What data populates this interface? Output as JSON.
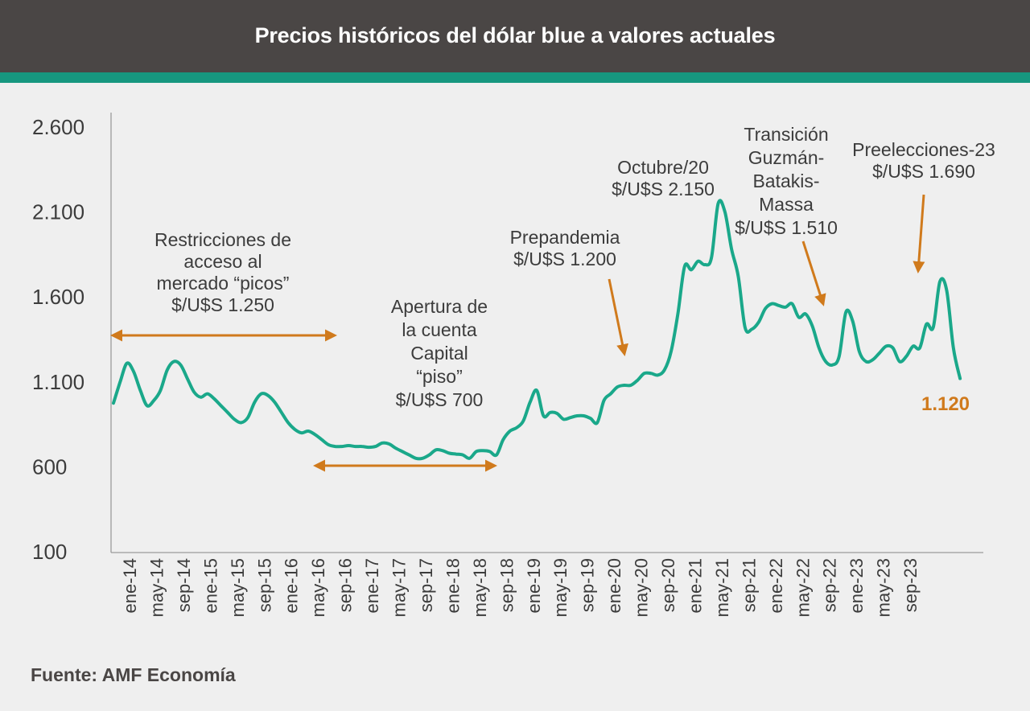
{
  "header": {
    "title": "Precios históricos del dólar blue a valores actuales"
  },
  "source": "Fuente: AMF Economía",
  "colors": {
    "line": "#1aa88a",
    "annotation": "#d07a1c",
    "text": "#3c3c3c",
    "header_bg": "#4a4645",
    "accent": "#16977f"
  },
  "chart_data": {
    "type": "line",
    "title": "Precios históricos del dólar blue a valores actuales",
    "xlabel": "",
    "ylabel": "",
    "ylim": [
      100,
      2600
    ],
    "yticks": [
      "2.600",
      "2.100",
      "1.600",
      "1.100",
      "600",
      "100"
    ],
    "ytick_values": [
      2600,
      2100,
      1600,
      1100,
      600,
      100
    ],
    "grid": false,
    "x_tick_labels": [
      "ene-14",
      "may-14",
      "sep-14",
      "ene-15",
      "may-15",
      "sep-15",
      "ene-16",
      "may-16",
      "sep-16",
      "ene-17",
      "may-17",
      "sep-17",
      "ene-18",
      "may-18",
      "sep-18",
      "ene-19",
      "may-19",
      "sep-19",
      "ene-20",
      "may-20",
      "sep-20",
      "ene-21",
      "may-21",
      "sep-21",
      "ene-22",
      "may-22",
      "sep-22",
      "ene-23",
      "may-23",
      "sep-23"
    ],
    "x_range_months": [
      0,
      124
    ],
    "series": [
      {
        "name": "",
        "points": [
          [
            0,
            975
          ],
          [
            1,
            1100
          ],
          [
            2,
            1210
          ],
          [
            3,
            1160
          ],
          [
            4,
            1050
          ],
          [
            5,
            960
          ],
          [
            6,
            990
          ],
          [
            7,
            1050
          ],
          [
            8,
            1170
          ],
          [
            9,
            1220
          ],
          [
            10,
            1200
          ],
          [
            11,
            1120
          ],
          [
            12,
            1040
          ],
          [
            13,
            1010
          ],
          [
            14,
            1030
          ],
          [
            15,
            1000
          ],
          [
            16,
            960
          ],
          [
            17,
            920
          ],
          [
            18,
            880
          ],
          [
            19,
            860
          ],
          [
            20,
            890
          ],
          [
            21,
            980
          ],
          [
            22,
            1030
          ],
          [
            23,
            1020
          ],
          [
            24,
            980
          ],
          [
            25,
            920
          ],
          [
            26,
            860
          ],
          [
            27,
            820
          ],
          [
            28,
            800
          ],
          [
            29,
            810
          ],
          [
            30,
            790
          ],
          [
            31,
            760
          ],
          [
            32,
            730
          ],
          [
            33,
            720
          ],
          [
            34,
            720
          ],
          [
            35,
            725
          ],
          [
            36,
            720
          ],
          [
            37,
            720
          ],
          [
            38,
            715
          ],
          [
            39,
            720
          ],
          [
            40,
            740
          ],
          [
            41,
            735
          ],
          [
            42,
            710
          ],
          [
            43,
            690
          ],
          [
            44,
            670
          ],
          [
            45,
            650
          ],
          [
            46,
            650
          ],
          [
            47,
            670
          ],
          [
            48,
            700
          ],
          [
            49,
            695
          ],
          [
            50,
            680
          ],
          [
            51,
            675
          ],
          [
            52,
            670
          ],
          [
            53,
            650
          ],
          [
            54,
            690
          ],
          [
            55,
            695
          ],
          [
            56,
            690
          ],
          [
            57,
            670
          ],
          [
            58,
            760
          ],
          [
            59,
            810
          ],
          [
            60,
            830
          ],
          [
            61,
            870
          ],
          [
            62,
            980
          ],
          [
            63,
            1050
          ],
          [
            64,
            900
          ],
          [
            65,
            920
          ],
          [
            66,
            915
          ],
          [
            67,
            880
          ],
          [
            68,
            890
          ],
          [
            69,
            900
          ],
          [
            70,
            900
          ],
          [
            71,
            885
          ],
          [
            72,
            860
          ],
          [
            73,
            990
          ],
          [
            74,
            1030
          ],
          [
            75,
            1070
          ],
          [
            76,
            1080
          ],
          [
            77,
            1080
          ],
          [
            78,
            1110
          ],
          [
            79,
            1150
          ],
          [
            80,
            1150
          ],
          [
            81,
            1140
          ],
          [
            82,
            1170
          ],
          [
            83,
            1280
          ],
          [
            84,
            1500
          ],
          [
            85,
            1780
          ],
          [
            86,
            1760
          ],
          [
            87,
            1810
          ],
          [
            88,
            1790
          ],
          [
            89,
            1830
          ],
          [
            90,
            2150
          ],
          [
            91,
            2100
          ],
          [
            92,
            1880
          ],
          [
            93,
            1720
          ],
          [
            94,
            1420
          ],
          [
            95,
            1410
          ],
          [
            96,
            1450
          ],
          [
            97,
            1530
          ],
          [
            98,
            1560
          ],
          [
            99,
            1550
          ],
          [
            100,
            1540
          ],
          [
            101,
            1560
          ],
          [
            102,
            1480
          ],
          [
            103,
            1500
          ],
          [
            104,
            1430
          ],
          [
            105,
            1300
          ],
          [
            106,
            1220
          ],
          [
            107,
            1200
          ],
          [
            108,
            1250
          ],
          [
            109,
            1510
          ],
          [
            110,
            1460
          ],
          [
            111,
            1280
          ],
          [
            112,
            1220
          ],
          [
            113,
            1230
          ],
          [
            114,
            1270
          ],
          [
            115,
            1310
          ],
          [
            116,
            1300
          ],
          [
            117,
            1220
          ],
          [
            118,
            1250
          ],
          [
            119,
            1310
          ],
          [
            120,
            1300
          ],
          [
            121,
            1440
          ],
          [
            122,
            1420
          ],
          [
            123,
            1690
          ],
          [
            124,
            1640
          ],
          [
            125,
            1300
          ],
          [
            126,
            1120
          ]
        ]
      }
    ],
    "annotations": [
      {
        "lines": [
          "Restricciones de",
          "acceso al",
          "mercado “picos”",
          "$/U$S 1.250"
        ]
      },
      {
        "lines": [
          "Apertura de",
          "la cuenta",
          "Capital",
          "“piso”",
          "$/U$S 700"
        ]
      },
      {
        "lines": [
          "Prepandemia",
          "$/U$S 1.200"
        ]
      },
      {
        "lines": [
          "Octubre/20",
          "$/U$S 2.150"
        ]
      },
      {
        "lines": [
          "Transición",
          "Guzmán-",
          "Batakis-",
          "Massa",
          "$/U$S 1.510"
        ]
      },
      {
        "lines": [
          "Preelecciones-23",
          "$/U$S 1.690"
        ]
      }
    ],
    "last_value_label": "1.120"
  }
}
